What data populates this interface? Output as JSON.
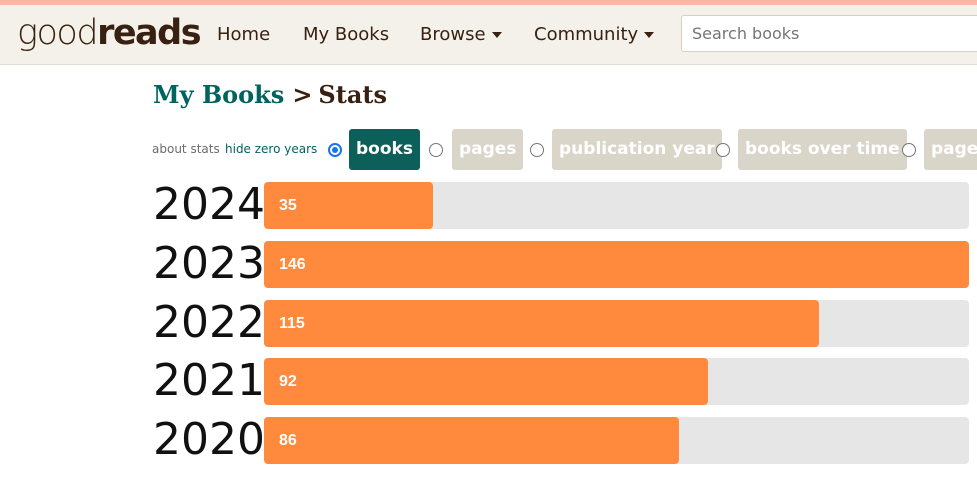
{
  "header": {
    "logo": {
      "light": "good",
      "bold": "reads"
    },
    "nav": [
      {
        "label": "Home",
        "has_caret": false
      },
      {
        "label": "My Books",
        "has_caret": false
      },
      {
        "label": "Browse",
        "has_caret": true
      },
      {
        "label": "Community",
        "has_caret": true
      }
    ],
    "search": {
      "placeholder": "Search books",
      "value": ""
    }
  },
  "breadcrumb": {
    "parent": "My Books",
    "separator": ">",
    "current": "Stats"
  },
  "links": {
    "about": "about stats",
    "hide_zero": "hide zero years"
  },
  "stat_tabs": [
    {
      "label": "books",
      "selected": true
    },
    {
      "label": "pages",
      "selected": false
    },
    {
      "label": "publication year",
      "selected": false
    },
    {
      "label": "books over time",
      "selected": false
    },
    {
      "label": "pages",
      "selected": false
    }
  ],
  "colors": {
    "bar": "#ff8a3d",
    "track": "#e6e6e6",
    "active_tab": "#0d5f59",
    "inactive_tab": "#d9d5c8",
    "link": "#00635d",
    "header_bg": "#f4f1ea"
  },
  "chart_data": {
    "type": "bar",
    "orientation": "horizontal",
    "categories": [
      "2024",
      "2023",
      "2022",
      "2021",
      "2020"
    ],
    "values": [
      35,
      146,
      115,
      92,
      86
    ],
    "xlim": [
      0,
      146
    ]
  }
}
